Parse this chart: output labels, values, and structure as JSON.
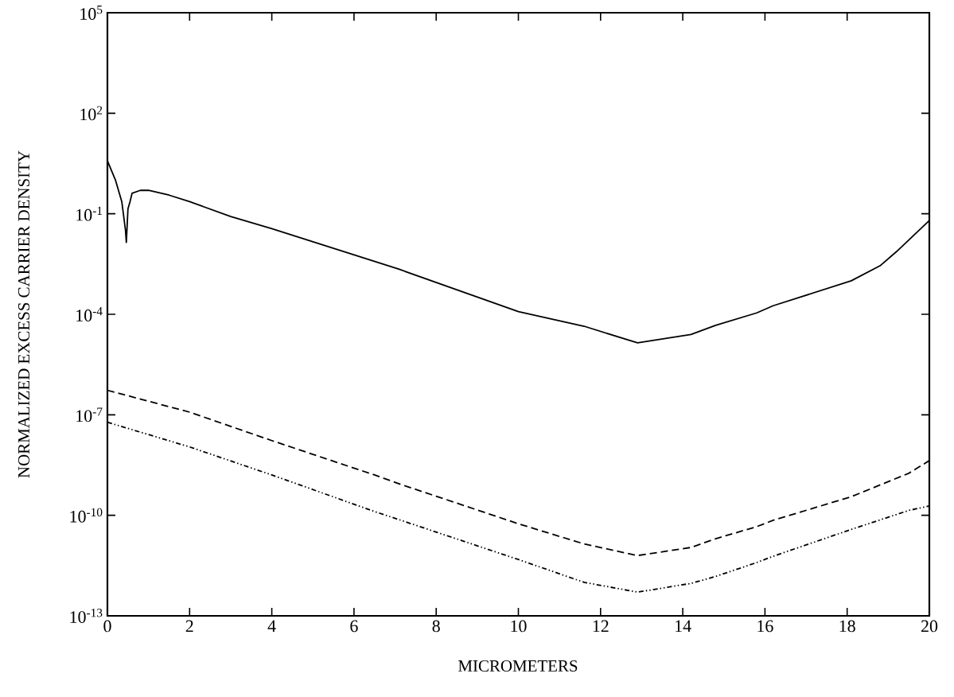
{
  "chart_data": {
    "type": "line",
    "xlabel": "MICROMETERS",
    "ylabel": "NORMALIZED EXCESS CARRIER DENSITY",
    "log": "y",
    "grid": false,
    "marker": "none",
    "xlim": [
      0,
      20
    ],
    "xticks": [
      0,
      2,
      4,
      6,
      8,
      10,
      12,
      14,
      16,
      18,
      20
    ],
    "ylim": [
      1e-13,
      100000.0
    ],
    "yticks": [
      {
        "value": 100000.0,
        "label": "10$^{5}$"
      },
      {
        "value": 100,
        "label": "10$^{2}$"
      },
      {
        "value": 0.1,
        "label": "10$^{-1}$"
      },
      {
        "value": 0.0001,
        "label": "10$^{-4}$"
      },
      {
        "value": 1e-07,
        "label": "10$^{-7}$"
      },
      {
        "value": 1e-10,
        "label": "10$^{-10}$"
      },
      {
        "value": 1e-13,
        "label": "10$^{-13}$"
      }
    ],
    "series": [
      {
        "color": "#000000",
        "line_style": "solid",
        "x": [
          0,
          0.2,
          0.35,
          0.44,
          0.46,
          0.5,
          0.55,
          0.6,
          0.8,
          1.0,
          1.5,
          2,
          3,
          4,
          7.1,
          10,
          11.6,
          12.9,
          14.2,
          14.8,
          15.8,
          16.2,
          18.1,
          18.8,
          19.2,
          20
        ],
        "values": [
          3.8,
          0.98,
          0.23,
          0.032,
          0.014,
          0.14,
          0.23,
          0.41,
          0.5,
          0.5,
          0.36,
          0.23,
          0.083,
          0.036,
          0.0022,
          0.00012,
          4.4e-05,
          1.4e-05,
          2.5e-05,
          4.7e-05,
          0.00011,
          0.00018,
          0.001,
          0.0028,
          0.0074,
          0.063
        ]
      },
      {
        "color": "#000000",
        "line_style": "dashed",
        "x": [
          0,
          2,
          4,
          6.5,
          7.1,
          10,
          11.6,
          12.9,
          14.2,
          14.8,
          15.8,
          16.2,
          18.1,
          19.5,
          20
        ],
        "values": [
          5.4e-07,
          1.2e-07,
          1.7e-08,
          1.6e-09,
          8.7e-10,
          5.6e-11,
          1.4e-11,
          6.3e-12,
          1.1e-11,
          2e-11,
          4.6e-11,
          7.1e-11,
          3.6e-10,
          1.8e-09,
          4.3e-09
        ]
      },
      {
        "color": "#000000",
        "line_style": "dashdot",
        "x": [
          0,
          2,
          4,
          6.5,
          7.1,
          10,
          11.6,
          12.9,
          14.2,
          14.8,
          15.8,
          16.2,
          18.1,
          19.5,
          20
        ],
        "values": [
          6e-08,
          1.1e-08,
          1.6e-09,
          1.3e-10,
          7.4e-11,
          4.8e-12,
          1e-12,
          5.1e-13,
          9.3e-13,
          1.5e-12,
          3.9e-12,
          6e-12,
          3.8e-11,
          1.4e-10,
          1.9e-10
        ]
      }
    ]
  }
}
